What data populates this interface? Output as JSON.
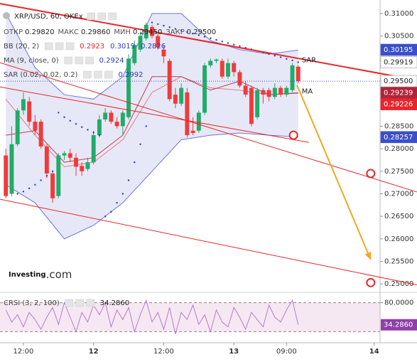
{
  "chart_data": {
    "type": "candlestick",
    "title": "XRP/USD, 60, OKEx",
    "ohlc_legend": [
      {
        "label": "ОТКР",
        "value": "0.29820"
      },
      {
        "label": "МАКС",
        "value": "0.29860"
      },
      {
        "label": "МИН",
        "value": "0.29450"
      },
      {
        "label": "ЗАКР",
        "value": "0.29500"
      }
    ],
    "indicator_legend": [
      {
        "name": "BB (20, 2)",
        "values": [
          "0.2923",
          "0.3019",
          "0.2826"
        ],
        "colors": [
          "#e8262b",
          "#2b3bb5",
          "#2b3bb5"
        ]
      },
      {
        "name": "MA (9, close, 0)",
        "values": [
          "0.2924"
        ],
        "colors": [
          "#2b3bb5"
        ]
      },
      {
        "name": "SAR (0.02, 0.02, 0.2)",
        "values": [
          "0.2992"
        ],
        "colors": [
          "#2b3bb5"
        ]
      }
    ],
    "x": [
      0,
      1,
      2,
      3,
      4,
      5,
      6,
      7,
      8,
      9,
      10,
      11,
      12,
      13,
      14,
      15,
      16,
      17,
      18,
      19,
      20,
      21,
      22,
      23,
      24,
      25,
      26,
      27,
      28,
      29,
      30,
      31,
      32,
      33,
      34,
      35,
      36,
      37,
      38,
      39,
      40,
      41,
      42,
      43,
      44,
      45,
      46,
      47,
      48,
      49,
      50
    ],
    "open": [
      0.2785,
      0.27,
      0.281,
      0.2885,
      0.2905,
      0.286,
      0.286,
      0.2805,
      0.2745,
      0.2695,
      0.2785,
      0.279,
      0.278,
      0.2762,
      0.2755,
      0.277,
      0.283,
      0.2865,
      0.288,
      0.286,
      0.285,
      0.287,
      0.299,
      0.302,
      0.3045,
      0.307,
      0.305,
      0.302,
      0.2995,
      0.292,
      0.29,
      0.2925,
      0.284,
      0.284,
      0.288,
      0.2985,
      0.2995,
      0.2995,
      0.296,
      0.299,
      0.297,
      0.294,
      0.2935,
      0.287,
      0.293,
      0.293,
      0.2915,
      0.2935,
      0.292,
      0.293,
      0.2982
    ],
    "high": [
      0.28,
      0.285,
      0.289,
      0.2925,
      0.2915,
      0.2875,
      0.2865,
      0.281,
      0.275,
      0.279,
      0.2795,
      0.28,
      0.279,
      0.277,
      0.278,
      0.284,
      0.2875,
      0.289,
      0.2885,
      0.287,
      0.2885,
      0.301,
      0.304,
      0.306,
      0.308,
      0.3075,
      0.306,
      0.303,
      0.3,
      0.2935,
      0.2945,
      0.2935,
      0.287,
      0.2885,
      0.299,
      0.3,
      0.3,
      0.3,
      0.3,
      0.2995,
      0.2975,
      0.295,
      0.294,
      0.2935,
      0.2935,
      0.2935,
      0.2945,
      0.294,
      0.294,
      0.299,
      0.2986
    ],
    "low": [
      0.269,
      0.2695,
      0.2805,
      0.2875,
      0.285,
      0.283,
      0.28,
      0.2735,
      0.268,
      0.269,
      0.2775,
      0.277,
      0.274,
      0.274,
      0.275,
      0.2765,
      0.2825,
      0.286,
      0.2855,
      0.2845,
      0.283,
      0.2865,
      0.2985,
      0.3015,
      0.304,
      0.3045,
      0.302,
      0.299,
      0.2905,
      0.289,
      0.2895,
      0.2825,
      0.283,
      0.2835,
      0.2875,
      0.298,
      0.299,
      0.2955,
      0.2955,
      0.296,
      0.2935,
      0.2915,
      0.285,
      0.2865,
      0.29,
      0.2905,
      0.291,
      0.2915,
      0.2915,
      0.2925,
      0.2945
    ],
    "close": [
      0.2695,
      0.281,
      0.2885,
      0.291,
      0.286,
      0.284,
      0.2805,
      0.2745,
      0.269,
      0.2785,
      0.279,
      0.278,
      0.276,
      0.275,
      0.277,
      0.283,
      0.2865,
      0.288,
      0.286,
      0.285,
      0.288,
      0.3,
      0.303,
      0.305,
      0.3075,
      0.305,
      0.3025,
      0.3005,
      0.291,
      0.29,
      0.2935,
      0.283,
      0.2835,
      0.288,
      0.2985,
      0.2995,
      0.2998,
      0.296,
      0.299,
      0.297,
      0.294,
      0.292,
      0.2855,
      0.293,
      0.292,
      0.2915,
      0.2935,
      0.292,
      0.2935,
      0.2985,
      0.295
    ],
    "up_color": "#22ab68",
    "down_color": "#ef3b3b",
    "xlim": [
      -1,
      64
    ],
    "xticks": [
      {
        "value": 3,
        "label": "12:00",
        "bold": false
      },
      {
        "value": 15,
        "label": "12",
        "bold": true
      },
      {
        "value": 27,
        "label": "12:00",
        "bold": false
      },
      {
        "value": 39,
        "label": "13",
        "bold": true
      },
      {
        "value": 48,
        "label": "09:00",
        "bold": false
      },
      {
        "value": 63,
        "label": "14",
        "bold": true
      }
    ],
    "ylim": [
      0.2483,
      0.313
    ],
    "yticks": [
      {
        "value": 0.31,
        "label": "0.31000"
      },
      {
        "value": 0.305,
        "label": "0.30500"
      },
      {
        "value": 0.285,
        "label": "0.28500"
      },
      {
        "value": 0.28,
        "label": "0.28000"
      },
      {
        "value": 0.275,
        "label": "0.27500"
      },
      {
        "value": 0.27,
        "label": "0.27000"
      },
      {
        "value": 0.265,
        "label": "0.26500"
      },
      {
        "value": 0.26,
        "label": "0.26000"
      },
      {
        "value": 0.255,
        "label": "0.25500"
      },
      {
        "value": 0.25,
        "label": "0.25000"
      }
    ],
    "bollinger": {
      "x": [
        0,
        5,
        10,
        15,
        20,
        25,
        30,
        35,
        40,
        45,
        50
      ],
      "upper": [
        0.31,
        0.298,
        0.292,
        0.291,
        0.296,
        0.31,
        0.31,
        0.304,
        0.302,
        0.301,
        0.3019
      ],
      "middle": [
        0.291,
        0.283,
        0.276,
        0.277,
        0.282,
        0.2925,
        0.296,
        0.2935,
        0.293,
        0.292,
        0.2923
      ],
      "lower": [
        0.272,
        0.268,
        0.26,
        0.263,
        0.268,
        0.275,
        0.282,
        0.283,
        0.2835,
        0.283,
        0.2826
      ],
      "line_color": "#6b76d6",
      "middle_color": "#e8262b",
      "fill": "#e3e4f6"
    },
    "ma": {
      "x": [
        0,
        5,
        10,
        15,
        20,
        25,
        30,
        35,
        40,
        45,
        50
      ],
      "values": [
        0.283,
        0.284,
        0.277,
        0.278,
        0.283,
        0.296,
        0.296,
        0.293,
        0.295,
        0.292,
        0.2924
      ],
      "color": "#c0394f"
    },
    "sar": {
      "x": [
        2,
        3,
        4,
        5,
        6,
        7,
        8,
        9,
        10,
        11,
        12,
        13,
        14,
        15,
        16,
        17,
        18,
        19,
        20,
        21,
        22,
        23,
        24,
        25,
        26,
        27,
        28,
        29,
        30,
        31,
        32,
        33,
        34,
        35,
        36,
        37,
        38,
        39,
        40,
        41,
        42,
        43,
        44,
        45,
        46,
        47,
        48,
        49,
        50
      ],
      "values": [
        0.27,
        0.2705,
        0.2712,
        0.272,
        0.273,
        0.274,
        0.275,
        0.288,
        0.287,
        0.2862,
        0.2855,
        0.2848,
        0.2842,
        0.2836,
        0.283,
        0.265,
        0.266,
        0.268,
        0.27,
        0.273,
        0.277,
        0.281,
        0.285,
        0.308,
        0.30765,
        0.3073,
        0.30695,
        0.3066,
        0.30625,
        0.3059,
        0.30555,
        0.3052,
        0.30485,
        0.3045,
        0.30415,
        0.3038,
        0.30345,
        0.3031,
        0.30275,
        0.3024,
        0.30205,
        0.3017,
        0.30135,
        0.301,
        0.30065,
        0.3003,
        0.29995,
        0.2996,
        0.2992
      ],
      "color": "#2b3bb5"
    },
    "trendlines": [
      {
        "x": [
          -1,
          70.3
        ],
        "values": [
          0.3122,
          0.2952
        ],
        "width": 2
      },
      {
        "x": [
          -1,
          70.3
        ],
        "values": [
          0.2991,
          0.2704
        ],
        "width": 1
      },
      {
        "x": [
          -1,
          51.85
        ],
        "values": [
          0.2937,
          0.2814
        ],
        "width": 1
      },
      {
        "x": [
          -1,
          70.3
        ],
        "values": [
          0.2688,
          0.2498
        ],
        "width": 1
      }
    ],
    "trendline_color": "#e8262b",
    "circles": {
      "x": [
        49.2,
        62.4,
        62.4
      ],
      "values": [
        0.283,
        0.2745,
        0.2503
      ],
      "color": "#e8262b"
    },
    "arrow": {
      "x": [
        49.8,
        62.4
      ],
      "values": [
        0.2941,
        0.2554
      ],
      "color": "#f5a623"
    },
    "annotations": {
      "sar": "SAR",
      "ma": "MA"
    },
    "current_price": 0.295,
    "current_color": "#3a4fc9",
    "price_labels": [
      {
        "value": 0.30195,
        "label": "0.30195",
        "bg": "#3a4fc9",
        "fg": "#ffffff"
      },
      {
        "value": 0.29919,
        "label": "0.29919",
        "bg": "#ffffff",
        "fg": "#222222"
      },
      {
        "value": 0.295,
        "label": "0.29500",
        "bg": "#ffffff",
        "fg": "#222222"
      },
      {
        "value": 0.29239,
        "label": "0.29239",
        "bg": "#b0243a",
        "fg": "#ffffff"
      },
      {
        "value": 0.29226,
        "label": "0.29226",
        "bg": "#e8262b",
        "fg": "#ffffff"
      },
      {
        "value": 0.28257,
        "label": "0.28257",
        "bg": "#3a4fc9",
        "fg": "#ffffff"
      }
    ],
    "logo": {
      "main": "Investing",
      "suffix": ".com"
    },
    "rsi": {
      "title": "CRSI (3, 2, 100)",
      "value_label": "34.2860",
      "values": [
        65,
        40,
        55,
        30,
        60,
        45,
        25,
        50,
        70,
        35,
        80,
        50,
        20,
        60,
        40,
        75,
        55,
        80,
        30,
        65,
        45,
        70,
        20,
        55,
        85,
        40,
        60,
        25,
        70,
        15,
        60,
        45,
        75,
        35,
        55,
        20,
        65,
        40,
        30,
        70,
        50,
        25,
        60,
        45,
        30,
        75,
        50,
        40,
        65,
        85,
        34.286
      ],
      "ylim": [
        0,
        100
      ],
      "yticks": [
        {
          "value": 80,
          "label": "80.0000"
        }
      ],
      "levels": [
        20,
        80
      ],
      "color": "#b57ad0",
      "band_fill": "#f6e8f2",
      "label_bg": "#8e3fa8"
    }
  }
}
